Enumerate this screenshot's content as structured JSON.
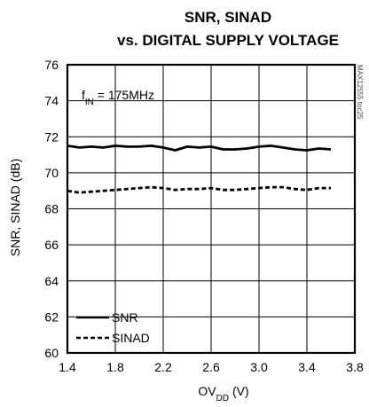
{
  "chart_data": {
    "type": "line",
    "title_line1": "SNR, SINAD",
    "title_line2": "vs. DIGITAL SUPPLY VOLTAGE",
    "xlabel_main": "OV",
    "xlabel_sub": "DD",
    "xlabel_unit": " (V)",
    "ylabel": "SNR, SINAD (dB)",
    "xlim": [
      1.4,
      3.8
    ],
    "ylim": [
      60,
      76
    ],
    "x_ticks": [
      "1.4",
      "1.8",
      "2.2",
      "2.6",
      "3.0",
      "3.4",
      "3.8"
    ],
    "y_ticks": [
      "76",
      "74",
      "72",
      "70",
      "68",
      "66",
      "64",
      "62",
      "60"
    ],
    "annotation_main": "f",
    "annotation_sub": "IN",
    "annotation_rest": " = 175MHz",
    "figure_code": "MAX12555 toc25",
    "grid": true,
    "legend_position": "bottom-left",
    "series": [
      {
        "name": "SNR",
        "style": "solid",
        "color": "#000000",
        "x": [
          1.4,
          1.5,
          1.6,
          1.7,
          1.8,
          1.9,
          2.0,
          2.1,
          2.2,
          2.3,
          2.4,
          2.5,
          2.6,
          2.7,
          2.8,
          2.9,
          3.0,
          3.1,
          3.2,
          3.3,
          3.4,
          3.5,
          3.6
        ],
        "values": [
          71.5,
          71.4,
          71.45,
          71.4,
          71.5,
          71.45,
          71.45,
          71.5,
          71.4,
          71.25,
          71.45,
          71.4,
          71.45,
          71.3,
          71.3,
          71.35,
          71.45,
          71.5,
          71.4,
          71.3,
          71.25,
          71.35,
          71.3
        ]
      },
      {
        "name": "SINAD",
        "style": "dashed",
        "color": "#000000",
        "x": [
          1.4,
          1.5,
          1.6,
          1.7,
          1.8,
          1.9,
          2.0,
          2.1,
          2.2,
          2.3,
          2.4,
          2.5,
          2.6,
          2.7,
          2.8,
          2.9,
          3.0,
          3.1,
          3.2,
          3.3,
          3.4,
          3.5,
          3.6
        ],
        "values": [
          69.0,
          68.9,
          68.95,
          69.0,
          69.05,
          69.1,
          69.15,
          69.2,
          69.15,
          69.05,
          69.1,
          69.1,
          69.15,
          69.05,
          69.05,
          69.1,
          69.15,
          69.2,
          69.2,
          69.1,
          69.05,
          69.15,
          69.15
        ]
      }
    ]
  }
}
